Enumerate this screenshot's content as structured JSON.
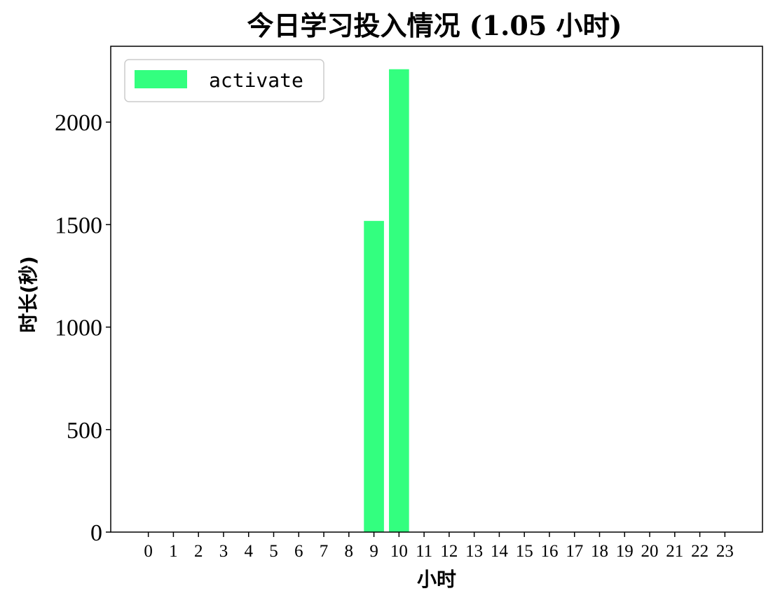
{
  "chart_data": {
    "type": "bar",
    "title": "今日学习投入情况 (1.05 小时)",
    "xlabel": "小时",
    "ylabel": "时长(秒)",
    "categories": [
      "0",
      "1",
      "2",
      "3",
      "4",
      "5",
      "6",
      "7",
      "8",
      "9",
      "10",
      "11",
      "12",
      "13",
      "14",
      "15",
      "16",
      "17",
      "18",
      "19",
      "20",
      "21",
      "22",
      "23"
    ],
    "series": [
      {
        "name": "activate",
        "color": "#33ff7f",
        "values": [
          0,
          0,
          0,
          0,
          0,
          0,
          0,
          0,
          0,
          1518,
          2258,
          0,
          0,
          0,
          0,
          0,
          0,
          0,
          0,
          0,
          0,
          0,
          0,
          0
        ]
      }
    ],
    "yticks": [
      0,
      500,
      1000,
      1500,
      2000
    ],
    "ylim": [
      0,
      2370
    ],
    "xlim": [
      -1.5,
      24.5
    ],
    "grid": false,
    "legend_position": "top-left"
  }
}
